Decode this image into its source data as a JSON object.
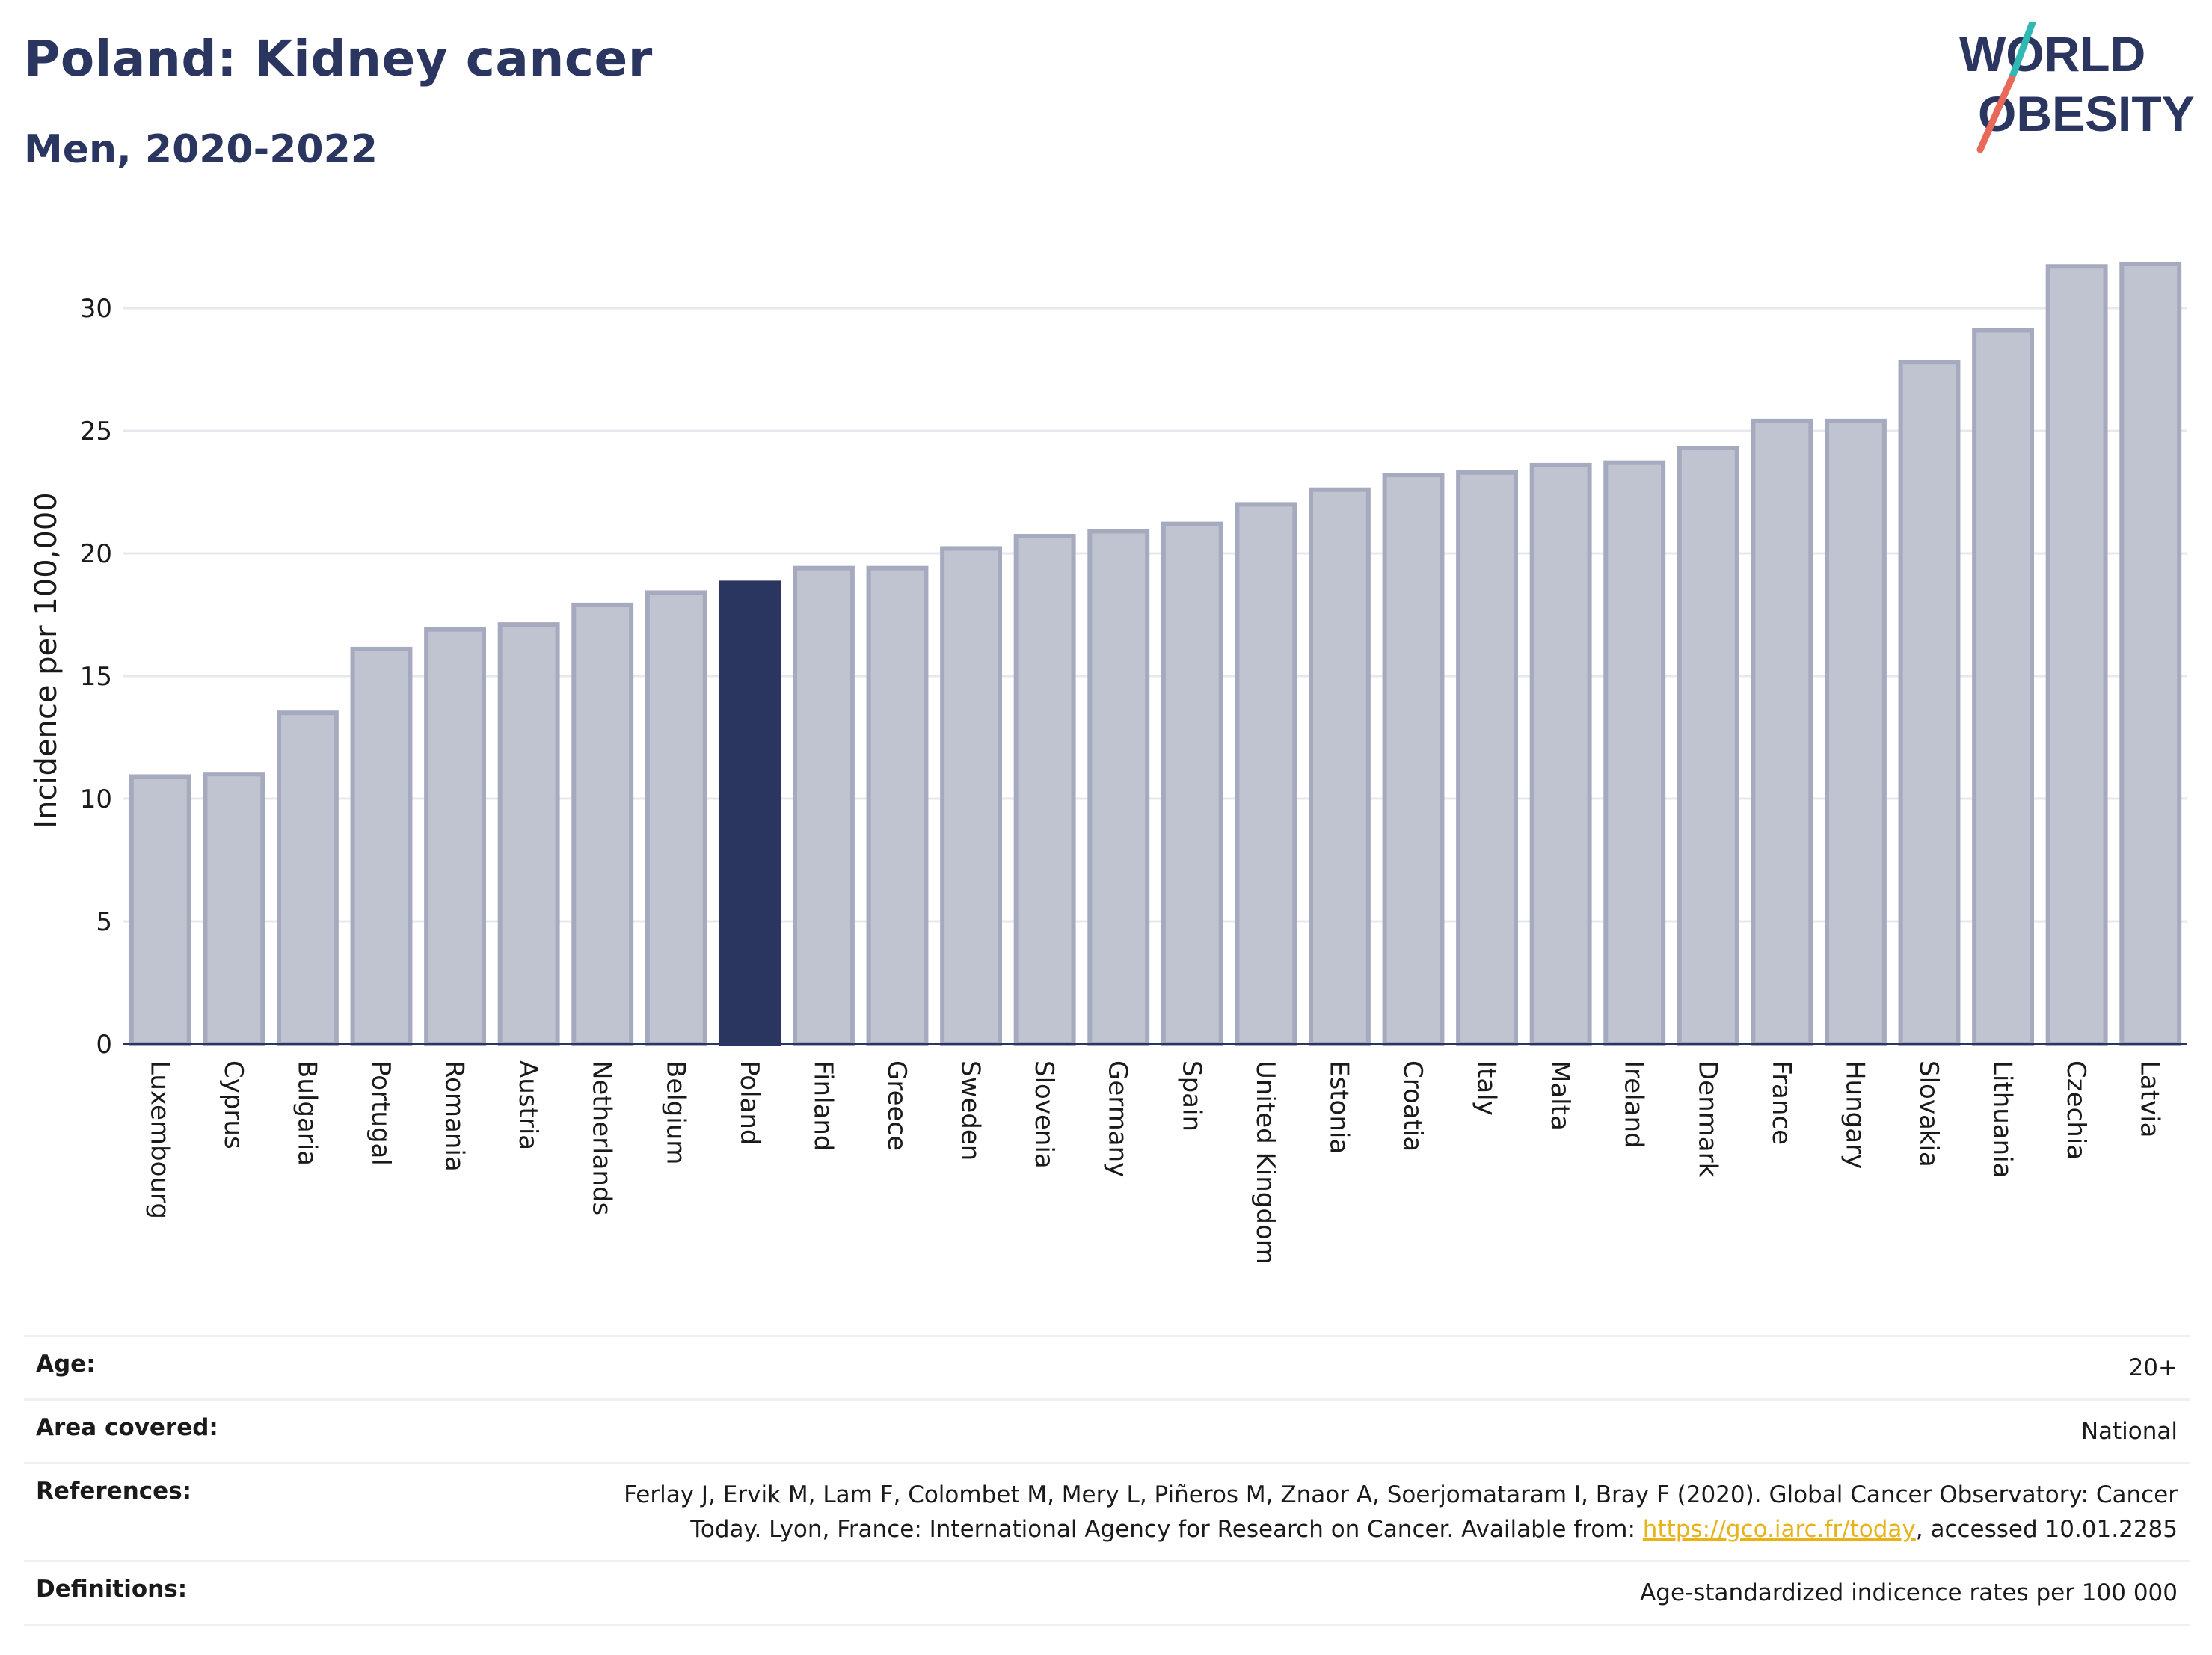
{
  "header": {
    "title": "Poland: Kidney cancer",
    "subtitle": "Men, 2020-2022",
    "logo_line1": "WORLD",
    "logo_line2": "OBESITY"
  },
  "chart_data": {
    "type": "bar",
    "title": "Poland: Kidney cancer",
    "subtitle": "Men, 2020-2022",
    "ylabel": "Incidence per 100,000",
    "xlabel": "",
    "ylim": [
      0,
      32.5
    ],
    "yticks": [
      0,
      5,
      10,
      15,
      20,
      25,
      30
    ],
    "grid": true,
    "highlight": "Poland",
    "highlight_color": "#2b3660",
    "bar_color": "#c0c3d0",
    "bar_edge_color": "#a6aabf",
    "categories": [
      "Luxembourg",
      "Cyprus",
      "Bulgaria",
      "Portugal",
      "Romania",
      "Austria",
      "Netherlands",
      "Belgium",
      "Poland",
      "Finland",
      "Greece",
      "Sweden",
      "Slovenia",
      "Germany",
      "Spain",
      "United Kingdom",
      "Estonia",
      "Croatia",
      "Italy",
      "Malta",
      "Ireland",
      "Denmark",
      "France",
      "Hungary",
      "Slovakia",
      "Lithuania",
      "Czechia",
      "Latvia"
    ],
    "values": [
      10.9,
      11.0,
      13.5,
      16.1,
      16.9,
      17.1,
      17.9,
      18.4,
      18.8,
      19.4,
      19.4,
      20.2,
      20.7,
      20.9,
      21.2,
      22.0,
      22.6,
      23.2,
      23.3,
      23.6,
      23.7,
      24.3,
      25.4,
      25.4,
      27.8,
      29.1,
      31.7,
      31.8
    ]
  },
  "info": {
    "rows": [
      {
        "label": "Age:",
        "value": "20+"
      },
      {
        "label": "Area covered:",
        "value": "National"
      },
      {
        "label": "Definitions:",
        "value": "Age-standardized indicence rates per 100 000"
      }
    ],
    "references": {
      "label": "References:",
      "text1": "Ferlay J, Ervik M, Lam F, Colombet M, Mery L, Piñeros M, Znaor A, Soerjomataram I, Bray F (2020). Global Cancer Observatory: Cancer",
      "text2": "Today. Lyon, France: International Agency for Research on Cancer. Available from: ",
      "link": "https://gco.iarc.fr/today",
      "text3": ", accessed 10.01.2285"
    }
  }
}
